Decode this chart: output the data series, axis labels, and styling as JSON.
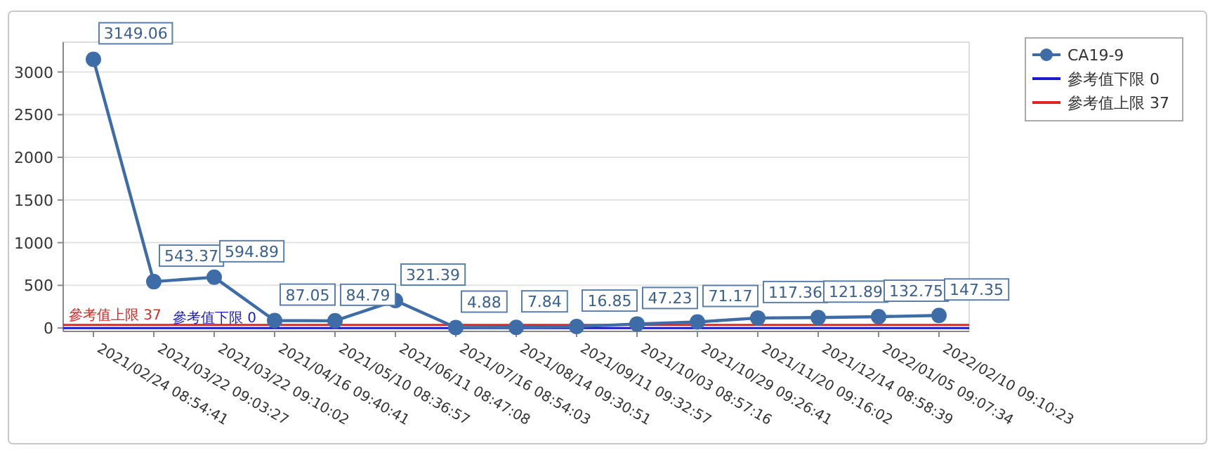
{
  "chart_data": {
    "type": "line",
    "categories": [
      "2021/02/24 08:54:41",
      "2021/03/22 09:03:27",
      "2021/03/22 09:10:02",
      "2021/04/16 09:40:41",
      "2021/05/10 08:36:57",
      "2021/06/11 08:47:08",
      "2021/07/16 08:54:03",
      "2021/08/14 09:30:51",
      "2021/09/11 09:32:57",
      "2021/10/03 08:57:16",
      "2021/10/29 09:26:41",
      "2021/11/20 09:16:02",
      "2021/12/14 08:58:39",
      "2022/01/05 09:07:34",
      "2022/02/10 09:10:23"
    ],
    "series": [
      {
        "name": "CA19-9",
        "color": "#3d6ca6",
        "values": [
          3149.06,
          543.37,
          594.89,
          87.05,
          84.79,
          321.39,
          4.88,
          7.84,
          16.85,
          47.23,
          71.17,
          117.36,
          121.89,
          132.75,
          147.35
        ]
      }
    ],
    "ylim": [
      -40,
      3350
    ],
    "yticks": [
      0,
      500,
      1000,
      1500,
      2000,
      2500,
      3000
    ],
    "ref_lines": [
      {
        "axis": "y",
        "value": 0,
        "label": "參考值下限 0",
        "color": "#1a1acc"
      },
      {
        "axis": "y",
        "value": 37,
        "label": "參考值上限 37",
        "color": "#e02424"
      }
    ],
    "grid": "y",
    "legend": "top right",
    "marker": "circle",
    "line_style": "solid",
    "data_labels": true
  }
}
